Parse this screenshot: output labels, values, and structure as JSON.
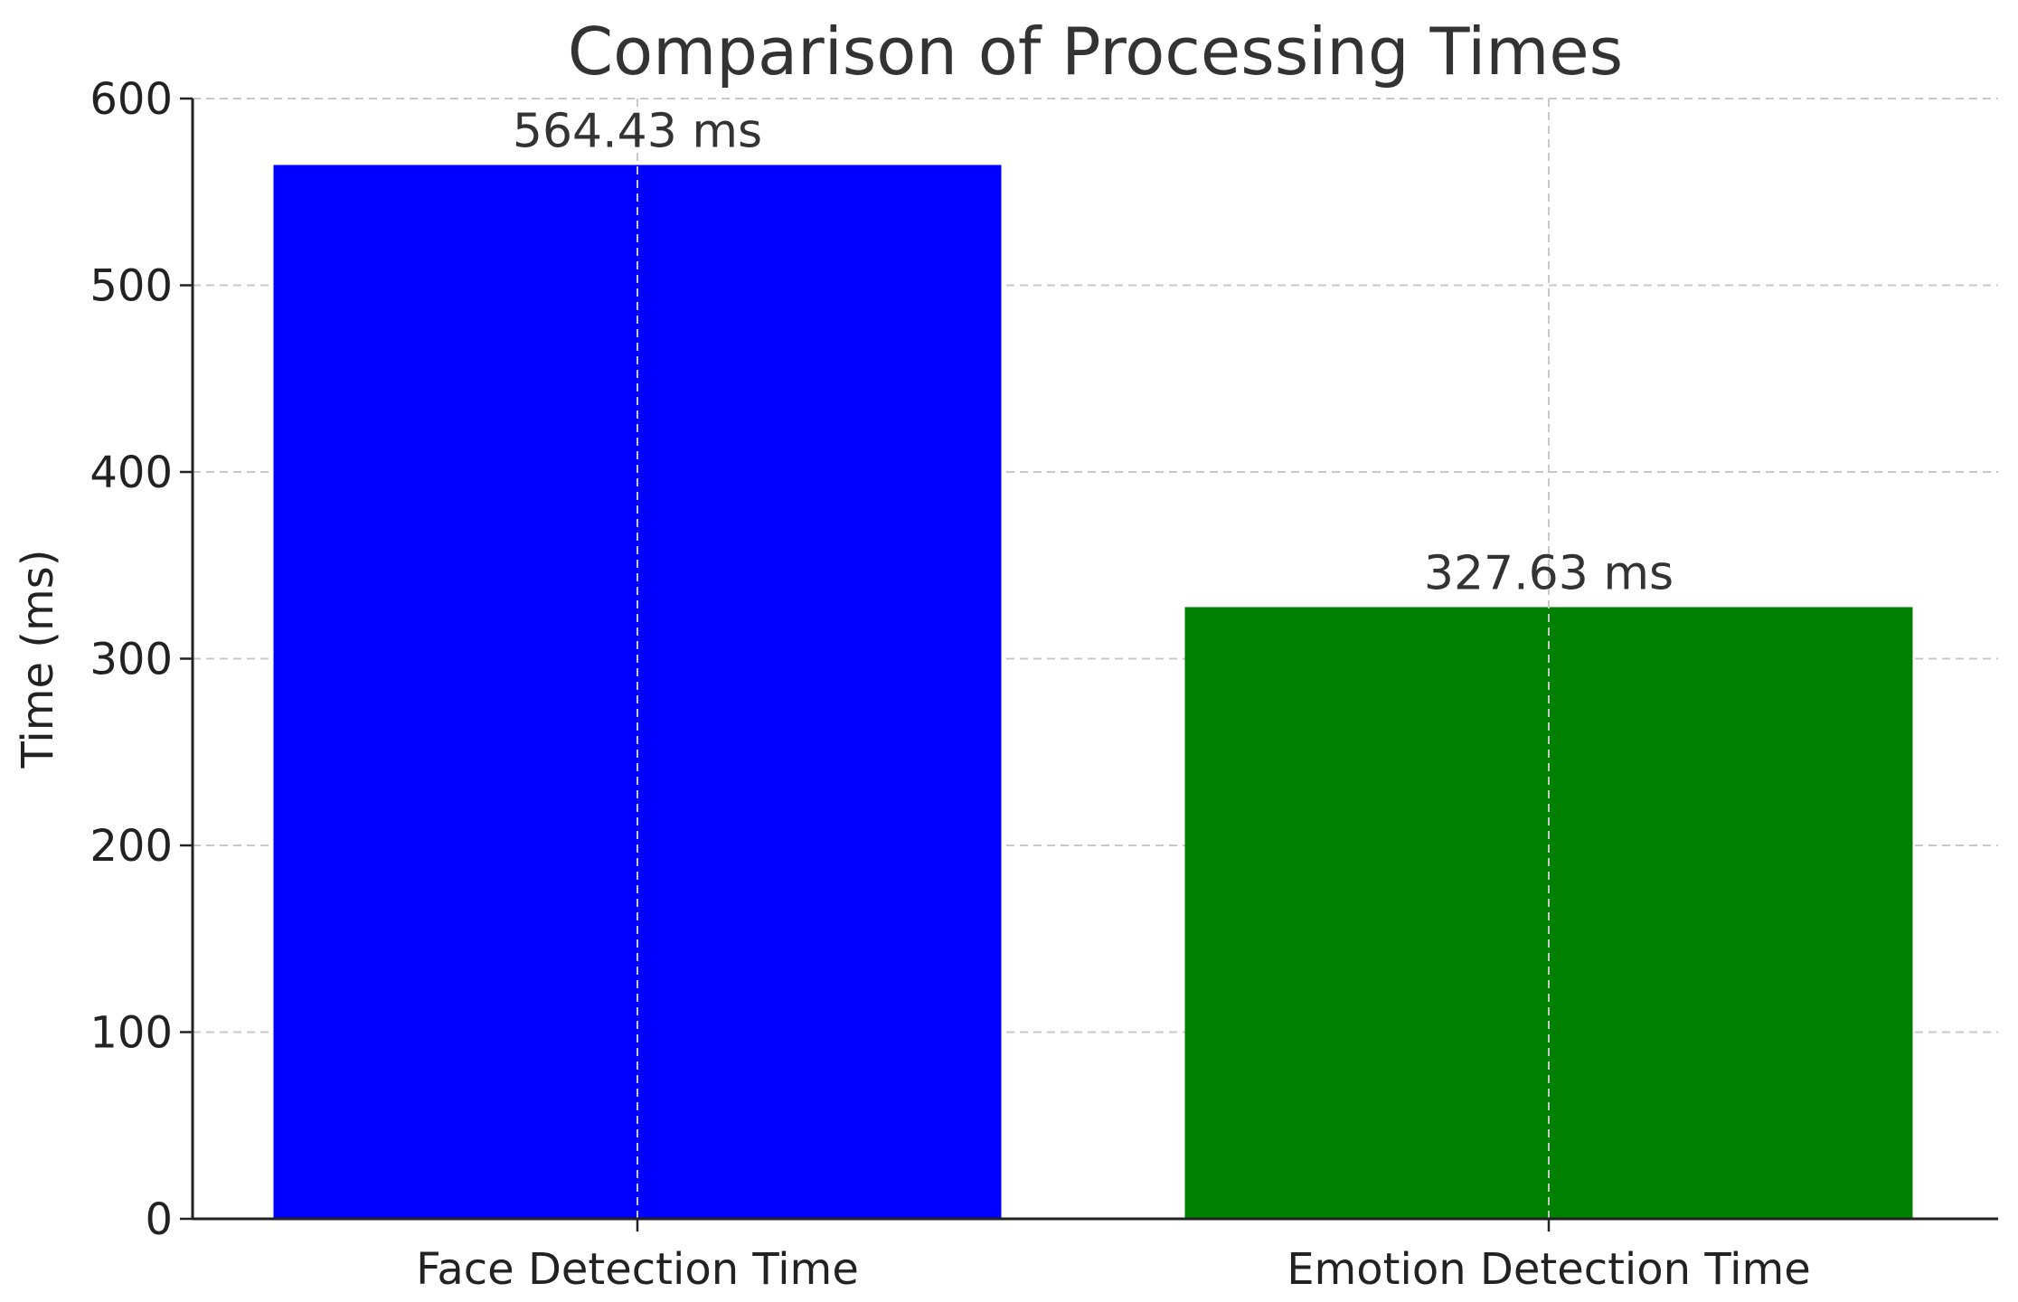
{
  "chart_data": {
    "type": "bar",
    "title": "Comparison of Processing Times",
    "xlabel": "",
    "ylabel": "Time (ms)",
    "categories": [
      "Face Detection Time",
      "Emotion Detection Time"
    ],
    "values": [
      564.43,
      327.63
    ],
    "value_labels": [
      "564.43 ms",
      "327.63 ms"
    ],
    "colors": [
      "#0000ff",
      "#008000"
    ],
    "ylim": [
      0,
      600
    ],
    "yticks": [
      0,
      100,
      200,
      300,
      400,
      500,
      600
    ],
    "grid": true,
    "grid_style": "dashed"
  }
}
